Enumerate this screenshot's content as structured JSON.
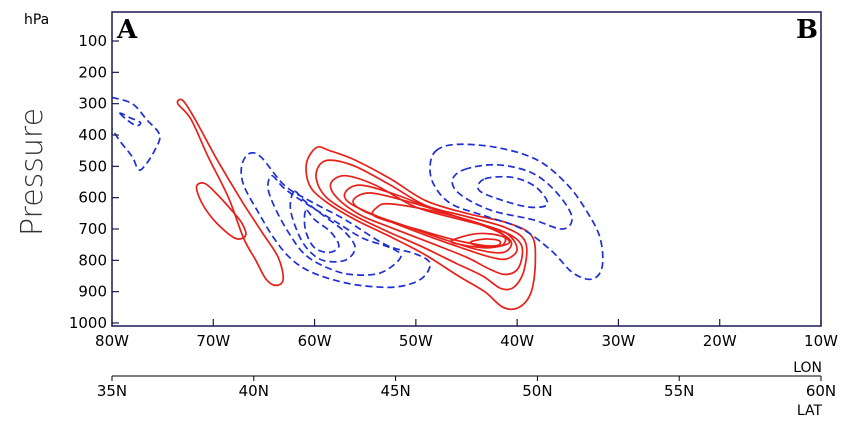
{
  "chart_data": {
    "type": "contour",
    "corner_labels": {
      "left": "A",
      "right": "B"
    },
    "yunit": "hPa",
    "ylabel": "Pressure",
    "y_reversed": true,
    "ylim": [
      1000,
      50
    ],
    "yticks": [
      "100",
      "200",
      "300",
      "400",
      "500",
      "600",
      "700",
      "800",
      "900",
      "1000"
    ],
    "xlabel_lon": "LON",
    "xlabel_lat": "LAT",
    "lon_ticks": [
      "80W",
      "70W",
      "60W",
      "50W",
      "40W",
      "30W",
      "20W",
      "10W"
    ],
    "lat_ticks": [
      "35N",
      "40N",
      "45N",
      "50N",
      "55N",
      "60N"
    ],
    "xlim_lon": [
      -80,
      -10
    ],
    "colors": {
      "positive": "#e8201a",
      "negative": "#1f2fd6",
      "frame": "#1a1a50"
    },
    "series": [
      {
        "sign": "positive",
        "style": "solid",
        "contours": [
          [
            [
              -73.5,
              300
            ],
            [
              -72.2,
              350
            ],
            [
              -70.5,
              470
            ],
            [
              -68.5,
              600
            ],
            [
              -67,
              730
            ],
            [
              -65.8,
              800
            ],
            [
              -64.8,
              860
            ],
            [
              -63.8,
              880
            ],
            [
              -63.1,
              860
            ],
            [
              -63.6,
              790
            ],
            [
              -65.2,
              710
            ],
            [
              -67.2,
              610
            ],
            [
              -69.6,
              480
            ],
            [
              -71.8,
              350
            ],
            [
              -73.0,
              290
            ],
            [
              -73.5,
              300
            ]
          ],
          [
            [
              -71.6,
              560
            ],
            [
              -70.8,
              555
            ],
            [
              -69.6,
              590
            ],
            [
              -68.2,
              640
            ],
            [
              -67.2,
              680
            ],
            [
              -66.8,
              720
            ],
            [
              -67.8,
              730
            ],
            [
              -69.4,
              690
            ],
            [
              -70.7,
              640
            ],
            [
              -71.5,
              590
            ],
            [
              -71.6,
              560
            ]
          ],
          [
            [
              -59.8,
              440
            ],
            [
              -58.5,
              450
            ],
            [
              -56,
              480
            ],
            [
              -52.5,
              540
            ],
            [
              -49,
              610
            ],
            [
              -45,
              650
            ],
            [
              -41,
              680
            ],
            [
              -38.6,
              720
            ],
            [
              -38.2,
              800
            ],
            [
              -38.6,
              900
            ],
            [
              -39.8,
              950
            ],
            [
              -41.4,
              950
            ],
            [
              -43.2,
              900
            ],
            [
              -45.8,
              850
            ],
            [
              -49.2,
              780
            ],
            [
              -52.8,
              720
            ],
            [
              -56,
              670
            ],
            [
              -59,
              610
            ],
            [
              -60.5,
              560
            ],
            [
              -60.8,
              490
            ],
            [
              -59.8,
              440
            ]
          ],
          [
            [
              -58.5,
              480
            ],
            [
              -56,
              500
            ],
            [
              -52.5,
              560
            ],
            [
              -49,
              625
            ],
            [
              -45,
              660
            ],
            [
              -41.2,
              695
            ],
            [
              -39.2,
              740
            ],
            [
              -39.3,
              830
            ],
            [
              -40.3,
              885
            ],
            [
              -41.6,
              890
            ],
            [
              -43.4,
              850
            ],
            [
              -46,
              810
            ],
            [
              -49.5,
              755
            ],
            [
              -53,
              705
            ],
            [
              -56.2,
              655
            ],
            [
              -58.8,
              600
            ],
            [
              -59.8,
              545
            ],
            [
              -59.6,
              500
            ],
            [
              -58.5,
              480
            ]
          ],
          [
            [
              -57,
              530
            ],
            [
              -54,
              560
            ],
            [
              -50,
              630
            ],
            [
              -45.6,
              670
            ],
            [
              -41.6,
              705
            ],
            [
              -39.6,
              750
            ],
            [
              -39.8,
              820
            ],
            [
              -41,
              845
            ],
            [
              -42.6,
              830
            ],
            [
              -45,
              790
            ],
            [
              -48.5,
              745
            ],
            [
              -52.5,
              695
            ],
            [
              -55.5,
              655
            ],
            [
              -57.8,
              600
            ],
            [
              -58.4,
              555
            ],
            [
              -57,
              530
            ]
          ],
          [
            [
              -55.5,
              560
            ],
            [
              -52,
              590
            ],
            [
              -48,
              640
            ],
            [
              -44,
              680
            ],
            [
              -41,
              715
            ],
            [
              -40,
              765
            ],
            [
              -41,
              795
            ],
            [
              -42.6,
              790
            ],
            [
              -45.5,
              760
            ],
            [
              -49,
              720
            ],
            [
              -53,
              670
            ],
            [
              -56.4,
              620
            ],
            [
              -57,
              585
            ],
            [
              -55.5,
              560
            ]
          ],
          [
            [
              -54.5,
              585
            ],
            [
              -50.5,
              615
            ],
            [
              -46.5,
              655
            ],
            [
              -42.5,
              700
            ],
            [
              -40.6,
              740
            ],
            [
              -41.4,
              775
            ],
            [
              -44,
              765
            ],
            [
              -47.5,
              730
            ],
            [
              -51.5,
              685
            ],
            [
              -55,
              645
            ],
            [
              -56.2,
              610
            ],
            [
              -54.5,
              585
            ]
          ],
          [
            [
              -52.5,
              620
            ],
            [
              -48,
              645
            ],
            [
              -43.5,
              685
            ],
            [
              -41.3,
              720
            ],
            [
              -41.8,
              755
            ],
            [
              -45.5,
              740
            ],
            [
              -50,
              700
            ],
            [
              -54,
              660
            ],
            [
              -53.8,
              630
            ],
            [
              -52.5,
              620
            ]
          ],
          [
            [
              -44,
              715
            ],
            [
              -41.6,
              722
            ],
            [
              -40.8,
              745
            ],
            [
              -42.8,
              760
            ],
            [
              -45.2,
              752
            ],
            [
              -46.5,
              738
            ],
            [
              -44,
              715
            ]
          ],
          [
            [
              -43.2,
              732
            ],
            [
              -41.8,
              737
            ],
            [
              -41.9,
              752
            ],
            [
              -43.8,
              754
            ],
            [
              -44.6,
              742
            ],
            [
              -43.2,
              732
            ]
          ]
        ]
      },
      {
        "sign": "negative",
        "style": "dashed",
        "contours": [
          [
            [
              -80,
              280
            ],
            [
              -78,
              300
            ],
            [
              -76.6,
              350
            ],
            [
              -75.3,
              400
            ],
            [
              -75.8,
              450
            ],
            [
              -76.8,
              500
            ],
            [
              -77.4,
              510
            ],
            [
              -78,
              470
            ],
            [
              -79.2,
              420
            ],
            [
              -80,
              380
            ]
          ],
          [
            [
              -79.2,
              330
            ],
            [
              -78.6,
              350
            ],
            [
              -77.6,
              370
            ],
            [
              -77.2,
              360
            ],
            [
              -78.2,
              345
            ],
            [
              -79.2,
              330
            ]
          ],
          [
            [
              -66.5,
              460
            ],
            [
              -65.3,
              470
            ],
            [
              -63,
              560
            ],
            [
              -60.5,
              610
            ],
            [
              -57,
              670
            ],
            [
              -53,
              750
            ],
            [
              -50,
              780
            ],
            [
              -48.6,
              810
            ],
            [
              -49.5,
              860
            ],
            [
              -52,
              885
            ],
            [
              -55.5,
              880
            ],
            [
              -58.4,
              860
            ],
            [
              -60.8,
              830
            ],
            [
              -62.5,
              790
            ],
            [
              -64,
              730
            ],
            [
              -65.5,
              650
            ],
            [
              -67,
              560
            ],
            [
              -67.2,
              500
            ],
            [
              -66.5,
              460
            ]
          ],
          [
            [
              -64.2,
              530
            ],
            [
              -63,
              570
            ],
            [
              -60.8,
              620
            ],
            [
              -58,
              675
            ],
            [
              -55.2,
              730
            ],
            [
              -52.5,
              760
            ],
            [
              -51.5,
              790
            ],
            [
              -53.5,
              840
            ],
            [
              -56.5,
              845
            ],
            [
              -59,
              820
            ],
            [
              -61,
              780
            ],
            [
              -62.4,
              720
            ],
            [
              -63.8,
              640
            ],
            [
              -64.6,
              570
            ],
            [
              -64.2,
              530
            ]
          ],
          [
            [
              -62,
              580
            ],
            [
              -61,
              610
            ],
            [
              -59,
              660
            ],
            [
              -57,
              710
            ],
            [
              -56,
              760
            ],
            [
              -57,
              800
            ],
            [
              -59.2,
              800
            ],
            [
              -60.8,
              760
            ],
            [
              -61.8,
              700
            ],
            [
              -62.4,
              630
            ],
            [
              -62,
              580
            ]
          ],
          [
            [
              -60.8,
              640
            ],
            [
              -60,
              670
            ],
            [
              -58.4,
              710
            ],
            [
              -57.6,
              755
            ],
            [
              -58.6,
              775
            ],
            [
              -60,
              760
            ],
            [
              -60.8,
              715
            ],
            [
              -61,
              670
            ],
            [
              -60.8,
              640
            ]
          ],
          [
            [
              -48,
              450
            ],
            [
              -46,
              430
            ],
            [
              -42,
              440
            ],
            [
              -38,
              480
            ],
            [
              -35,
              560
            ],
            [
              -33,
              650
            ],
            [
              -31.8,
              730
            ],
            [
              -31.6,
              820
            ],
            [
              -32.6,
              860
            ],
            [
              -34.5,
              840
            ],
            [
              -36.6,
              770
            ],
            [
              -39.5,
              700
            ],
            [
              -43,
              660
            ],
            [
              -46.5,
              620
            ],
            [
              -48.2,
              560
            ],
            [
              -48.6,
              500
            ],
            [
              -48,
              450
            ]
          ],
          [
            [
              -45.2,
              510
            ],
            [
              -42,
              495
            ],
            [
              -38.6,
              520
            ],
            [
              -36.2,
              580
            ],
            [
              -34.6,
              660
            ],
            [
              -35.5,
              700
            ],
            [
              -38.5,
              670
            ],
            [
              -42.6,
              640
            ],
            [
              -45.6,
              590
            ],
            [
              -46.4,
              545
            ],
            [
              -45.2,
              510
            ]
          ],
          [
            [
              -43.2,
              540
            ],
            [
              -40.5,
              535
            ],
            [
              -38.2,
              565
            ],
            [
              -37,
              620
            ],
            [
              -38.8,
              630
            ],
            [
              -41.8,
              605
            ],
            [
              -43.8,
              575
            ],
            [
              -43.2,
              540
            ]
          ]
        ]
      }
    ]
  }
}
